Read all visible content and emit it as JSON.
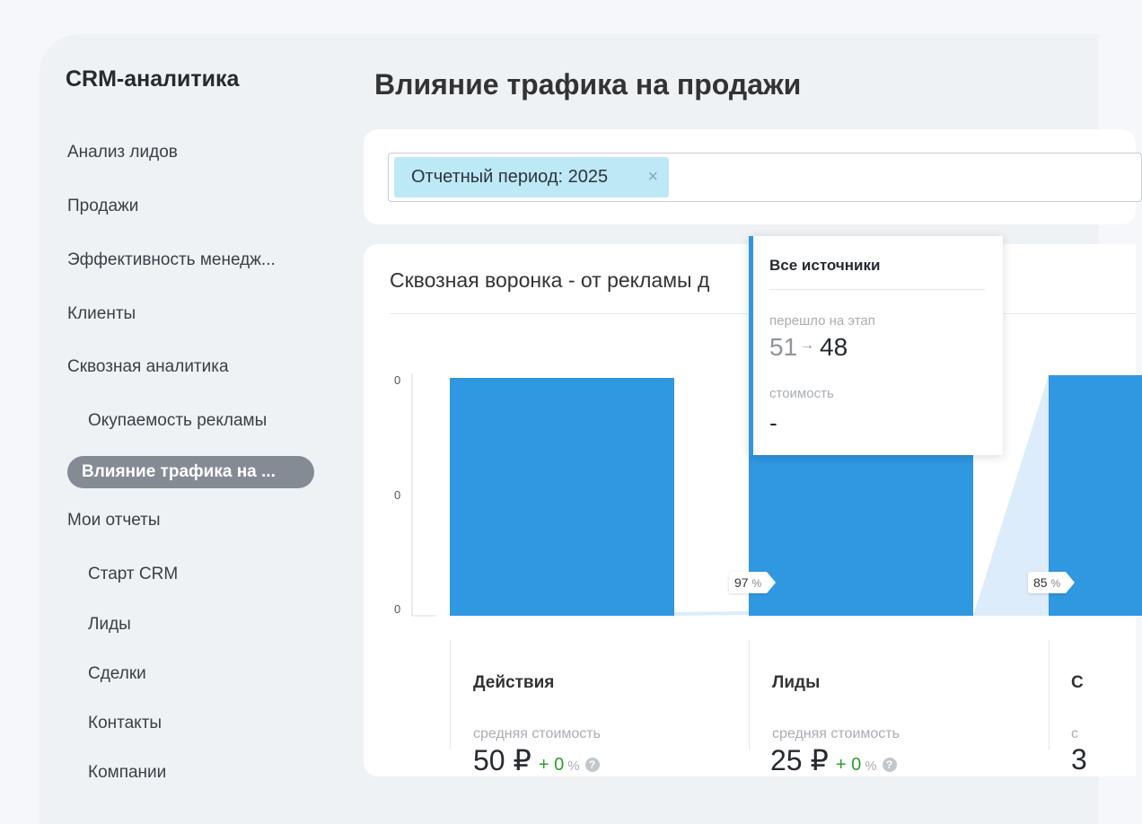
{
  "sidebar": {
    "app_title": "CRM-аналитика",
    "items": [
      {
        "label": "Анализ лидов"
      },
      {
        "label": "Продажи"
      },
      {
        "label": "Эффективность менедж..."
      },
      {
        "label": "Клиенты"
      },
      {
        "label": "Сквозная аналитика"
      },
      {
        "label": "Окупаемость рекламы"
      },
      {
        "label": "Влияние трафика на ..."
      },
      {
        "label": "Мои отчеты"
      },
      {
        "label": "Старт CRM"
      },
      {
        "label": "Лиды"
      },
      {
        "label": "Сделки"
      },
      {
        "label": "Контакты"
      },
      {
        "label": "Компании"
      }
    ],
    "active_index": 6
  },
  "header": {
    "title": "Влияние трафика на продажи"
  },
  "filter": {
    "tag_label": "Отчетный период: 2025",
    "close_symbol": "×"
  },
  "funnel": {
    "title": "Сквозная воронка - от рекламы д",
    "y_ticks": [
      "0",
      "0",
      "0"
    ],
    "conversions": [
      {
        "value": "97",
        "unit": "%"
      },
      {
        "value": "85",
        "unit": "%"
      }
    ],
    "stages": [
      {
        "name": "Действия",
        "cost_label": "средняя стоимость",
        "cost": "50 ₽",
        "delta": "+ 0",
        "delta_unit": "%",
        "help": "?"
      },
      {
        "name": "Лиды",
        "cost_label": "средняя стоимость",
        "cost": "25 ₽",
        "delta": "+ 0",
        "delta_unit": "%",
        "help": "?"
      },
      {
        "name": "С",
        "cost_label": "с",
        "cost": "3"
      }
    ],
    "bar_color": "#3097e1",
    "flow_color": "#dcecfa"
  },
  "tooltip": {
    "title": "Все источники",
    "moved_label": "перешло на этап",
    "from": "51",
    "arrow": "→",
    "to": "48",
    "cost_label": "стоимость",
    "cost": "-"
  }
}
